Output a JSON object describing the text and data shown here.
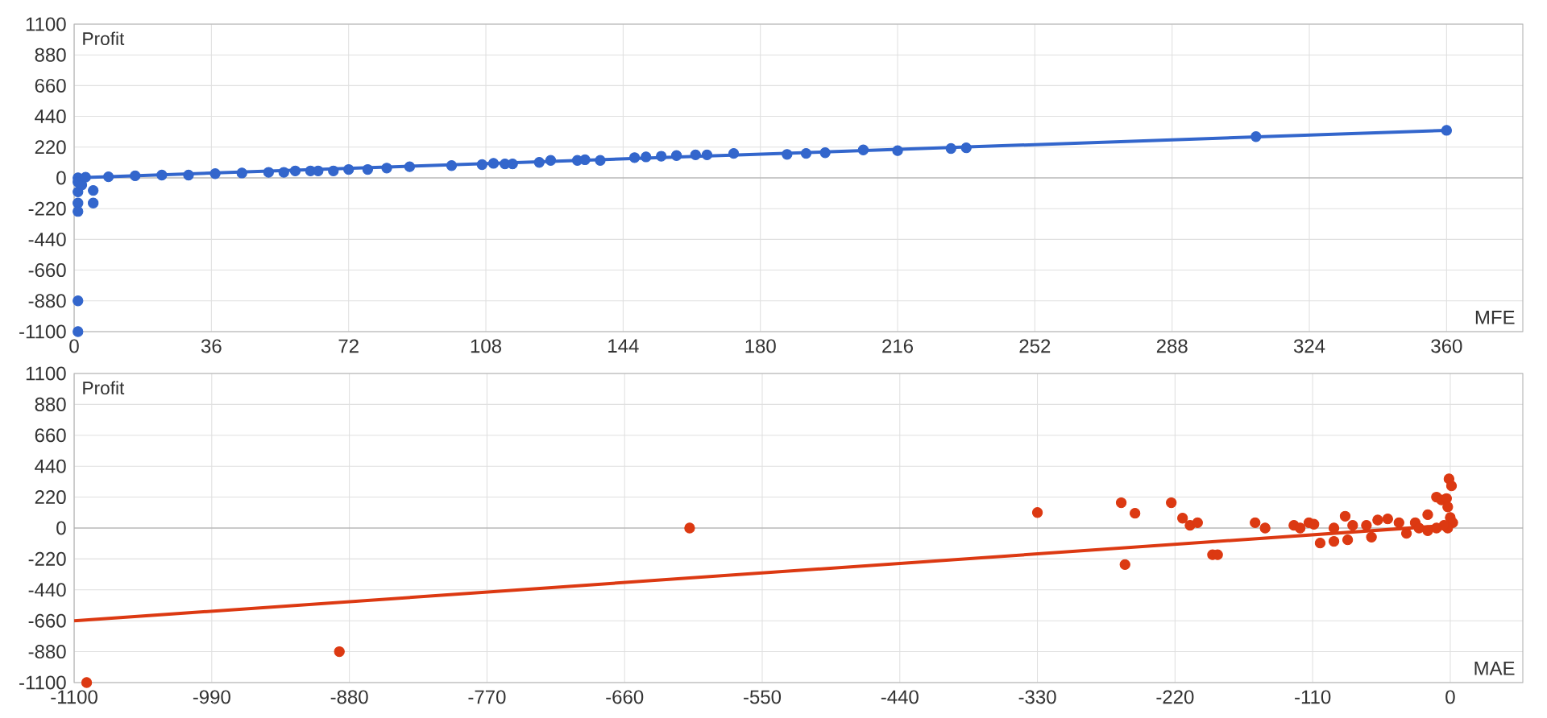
{
  "chart_data": [
    {
      "type": "scatter",
      "xlabel": "MFE",
      "ylabel": "Profit",
      "xlim": [
        0,
        380
      ],
      "ylim": [
        -1100,
        1100
      ],
      "xticks": [
        0,
        36,
        72,
        108,
        144,
        180,
        216,
        252,
        288,
        324,
        360
      ],
      "yticks": [
        -1100,
        -880,
        -660,
        -440,
        -220,
        0,
        220,
        440,
        660,
        880,
        1100
      ],
      "grid": true,
      "series": [
        {
          "type": "line",
          "marker": "none",
          "color": "#3366cc",
          "x": [
            0,
            360
          ],
          "values": [
            0,
            340
          ]
        },
        {
          "marker": "circle",
          "color": "#3366cc",
          "x": [
            1,
            1,
            1,
            1,
            1,
            1,
            1,
            2,
            5,
            5,
            3,
            9,
            16,
            23,
            30,
            37,
            44,
            51,
            55,
            58,
            62,
            64,
            68,
            72,
            77,
            82,
            88,
            99,
            107,
            110,
            113,
            115,
            122,
            125,
            132,
            134,
            138,
            147,
            150,
            154,
            158,
            163,
            166,
            173,
            187,
            192,
            197,
            207,
            216,
            230,
            234,
            310,
            360
          ],
          "values": [
            0,
            -30,
            -100,
            -180,
            -240,
            -880,
            -1100,
            -50,
            -90,
            -180,
            5,
            8,
            15,
            20,
            20,
            30,
            35,
            40,
            40,
            50,
            50,
            50,
            50,
            60,
            60,
            70,
            80,
            88,
            95,
            104,
            100,
            100,
            111,
            125,
            125,
            130,
            125,
            145,
            150,
            155,
            160,
            165,
            165,
            175,
            168,
            175,
            180,
            200,
            195,
            210,
            215,
            295,
            340
          ]
        }
      ]
    },
    {
      "type": "scatter",
      "xlabel": "MAE",
      "ylabel": "Profit",
      "xlim": [
        -1100,
        58
      ],
      "ylim": [
        -1100,
        1100
      ],
      "xticks": [
        -1100,
        -990,
        -880,
        -770,
        -660,
        -550,
        -440,
        -330,
        -220,
        -110,
        0
      ],
      "yticks": [
        -1100,
        -880,
        -660,
        -440,
        -220,
        0,
        220,
        440,
        660,
        880,
        1100
      ],
      "grid": true,
      "series": [
        {
          "type": "line",
          "marker": "none",
          "color": "#dc3912",
          "x": [
            -1100,
            0
          ],
          "values": [
            -660,
            20
          ]
        },
        {
          "marker": "circle",
          "color": "#dc3912",
          "x": [
            -1090,
            -888,
            -608,
            -330,
            -263,
            -252,
            -260,
            -223,
            -214,
            -208,
            -202,
            -190,
            -186,
            -156,
            -148,
            -125,
            -120,
            -113,
            -109,
            -104,
            -93,
            -82,
            -84,
            -93,
            -78,
            -67,
            -63,
            -58,
            -50,
            -41,
            -35,
            -28,
            -25,
            -18,
            -11,
            -7,
            -3,
            -1,
            1,
            -2,
            0,
            2,
            -2,
            -5,
            -11,
            -18
          ],
          "values": [
            -1100,
            -880,
            0,
            110,
            180,
            105,
            -260,
            180,
            70,
            19,
            38,
            -190,
            -190,
            38,
            0,
            19,
            0,
            38,
            27,
            -107,
            -95,
            -84,
            84,
            0,
            19,
            19,
            -65,
            57,
            65,
            38,
            -38,
            38,
            0,
            95,
            220,
            200,
            210,
            350,
            300,
            150,
            75,
            38,
            0,
            19,
            0,
            -19
          ]
        }
      ]
    }
  ]
}
